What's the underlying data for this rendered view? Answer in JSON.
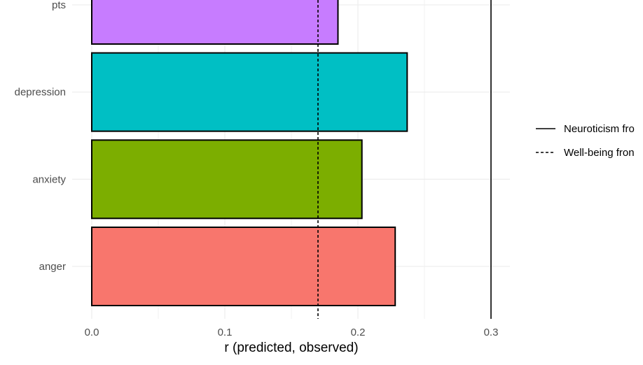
{
  "chart_data": {
    "type": "bar",
    "orientation": "horizontal",
    "categories": [
      "anger",
      "anxiety",
      "depression",
      "pts"
    ],
    "values": [
      0.228,
      0.203,
      0.237,
      0.185
    ],
    "colors": [
      "#F8766D",
      "#7CAE00",
      "#00BFC4",
      "#C77CFF"
    ],
    "xlabel": "r (predicted, observed)",
    "ylabel": "",
    "xlim": [
      0.0,
      0.3
    ],
    "x_ticks": [
      "0.0",
      "0.1",
      "0.2",
      "0.3"
    ],
    "grid": true,
    "reference_lines": [
      {
        "label": "Neuroticism fro",
        "value": 0.3,
        "style": "solid"
      },
      {
        "label": "Well-being fron",
        "value": 0.17,
        "style": "dashed"
      }
    ],
    "legend_position": "right"
  }
}
